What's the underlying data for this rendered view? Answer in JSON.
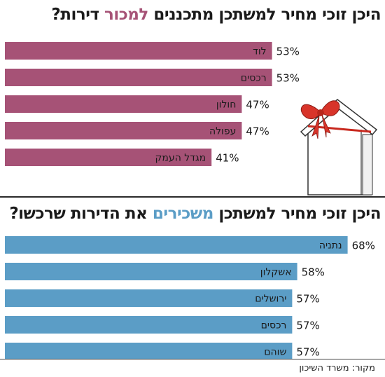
{
  "title1": {
    "prefix": "היכן זוכי מחיר למשתכן מתכננים ",
    "highlight": "למכור",
    "suffix": " דירות?"
  },
  "title2": {
    "prefix": "היכן זוכי מחיר למשתכן ",
    "highlight": "משכירים",
    "suffix": " את הדירות שרכשו?"
  },
  "source": "מקור: משרד השיכון",
  "colors": {
    "sell": "#a65276",
    "rent": "#5b9dc6"
  },
  "chart_data": [
    {
      "type": "bar",
      "orientation": "horizontal",
      "categories": [
        "לוד",
        "רכסים",
        "חולון",
        "עפולה",
        "מגדל העמק"
      ],
      "values": [
        53,
        53,
        47,
        47,
        41
      ],
      "unit": "%"
    },
    {
      "type": "bar",
      "orientation": "horizontal",
      "categories": [
        "נתניה",
        "אשקלון",
        "ירושלים",
        "רכסים",
        "שוהם"
      ],
      "values": [
        68,
        58,
        57,
        57,
        57
      ],
      "unit": "%"
    }
  ]
}
